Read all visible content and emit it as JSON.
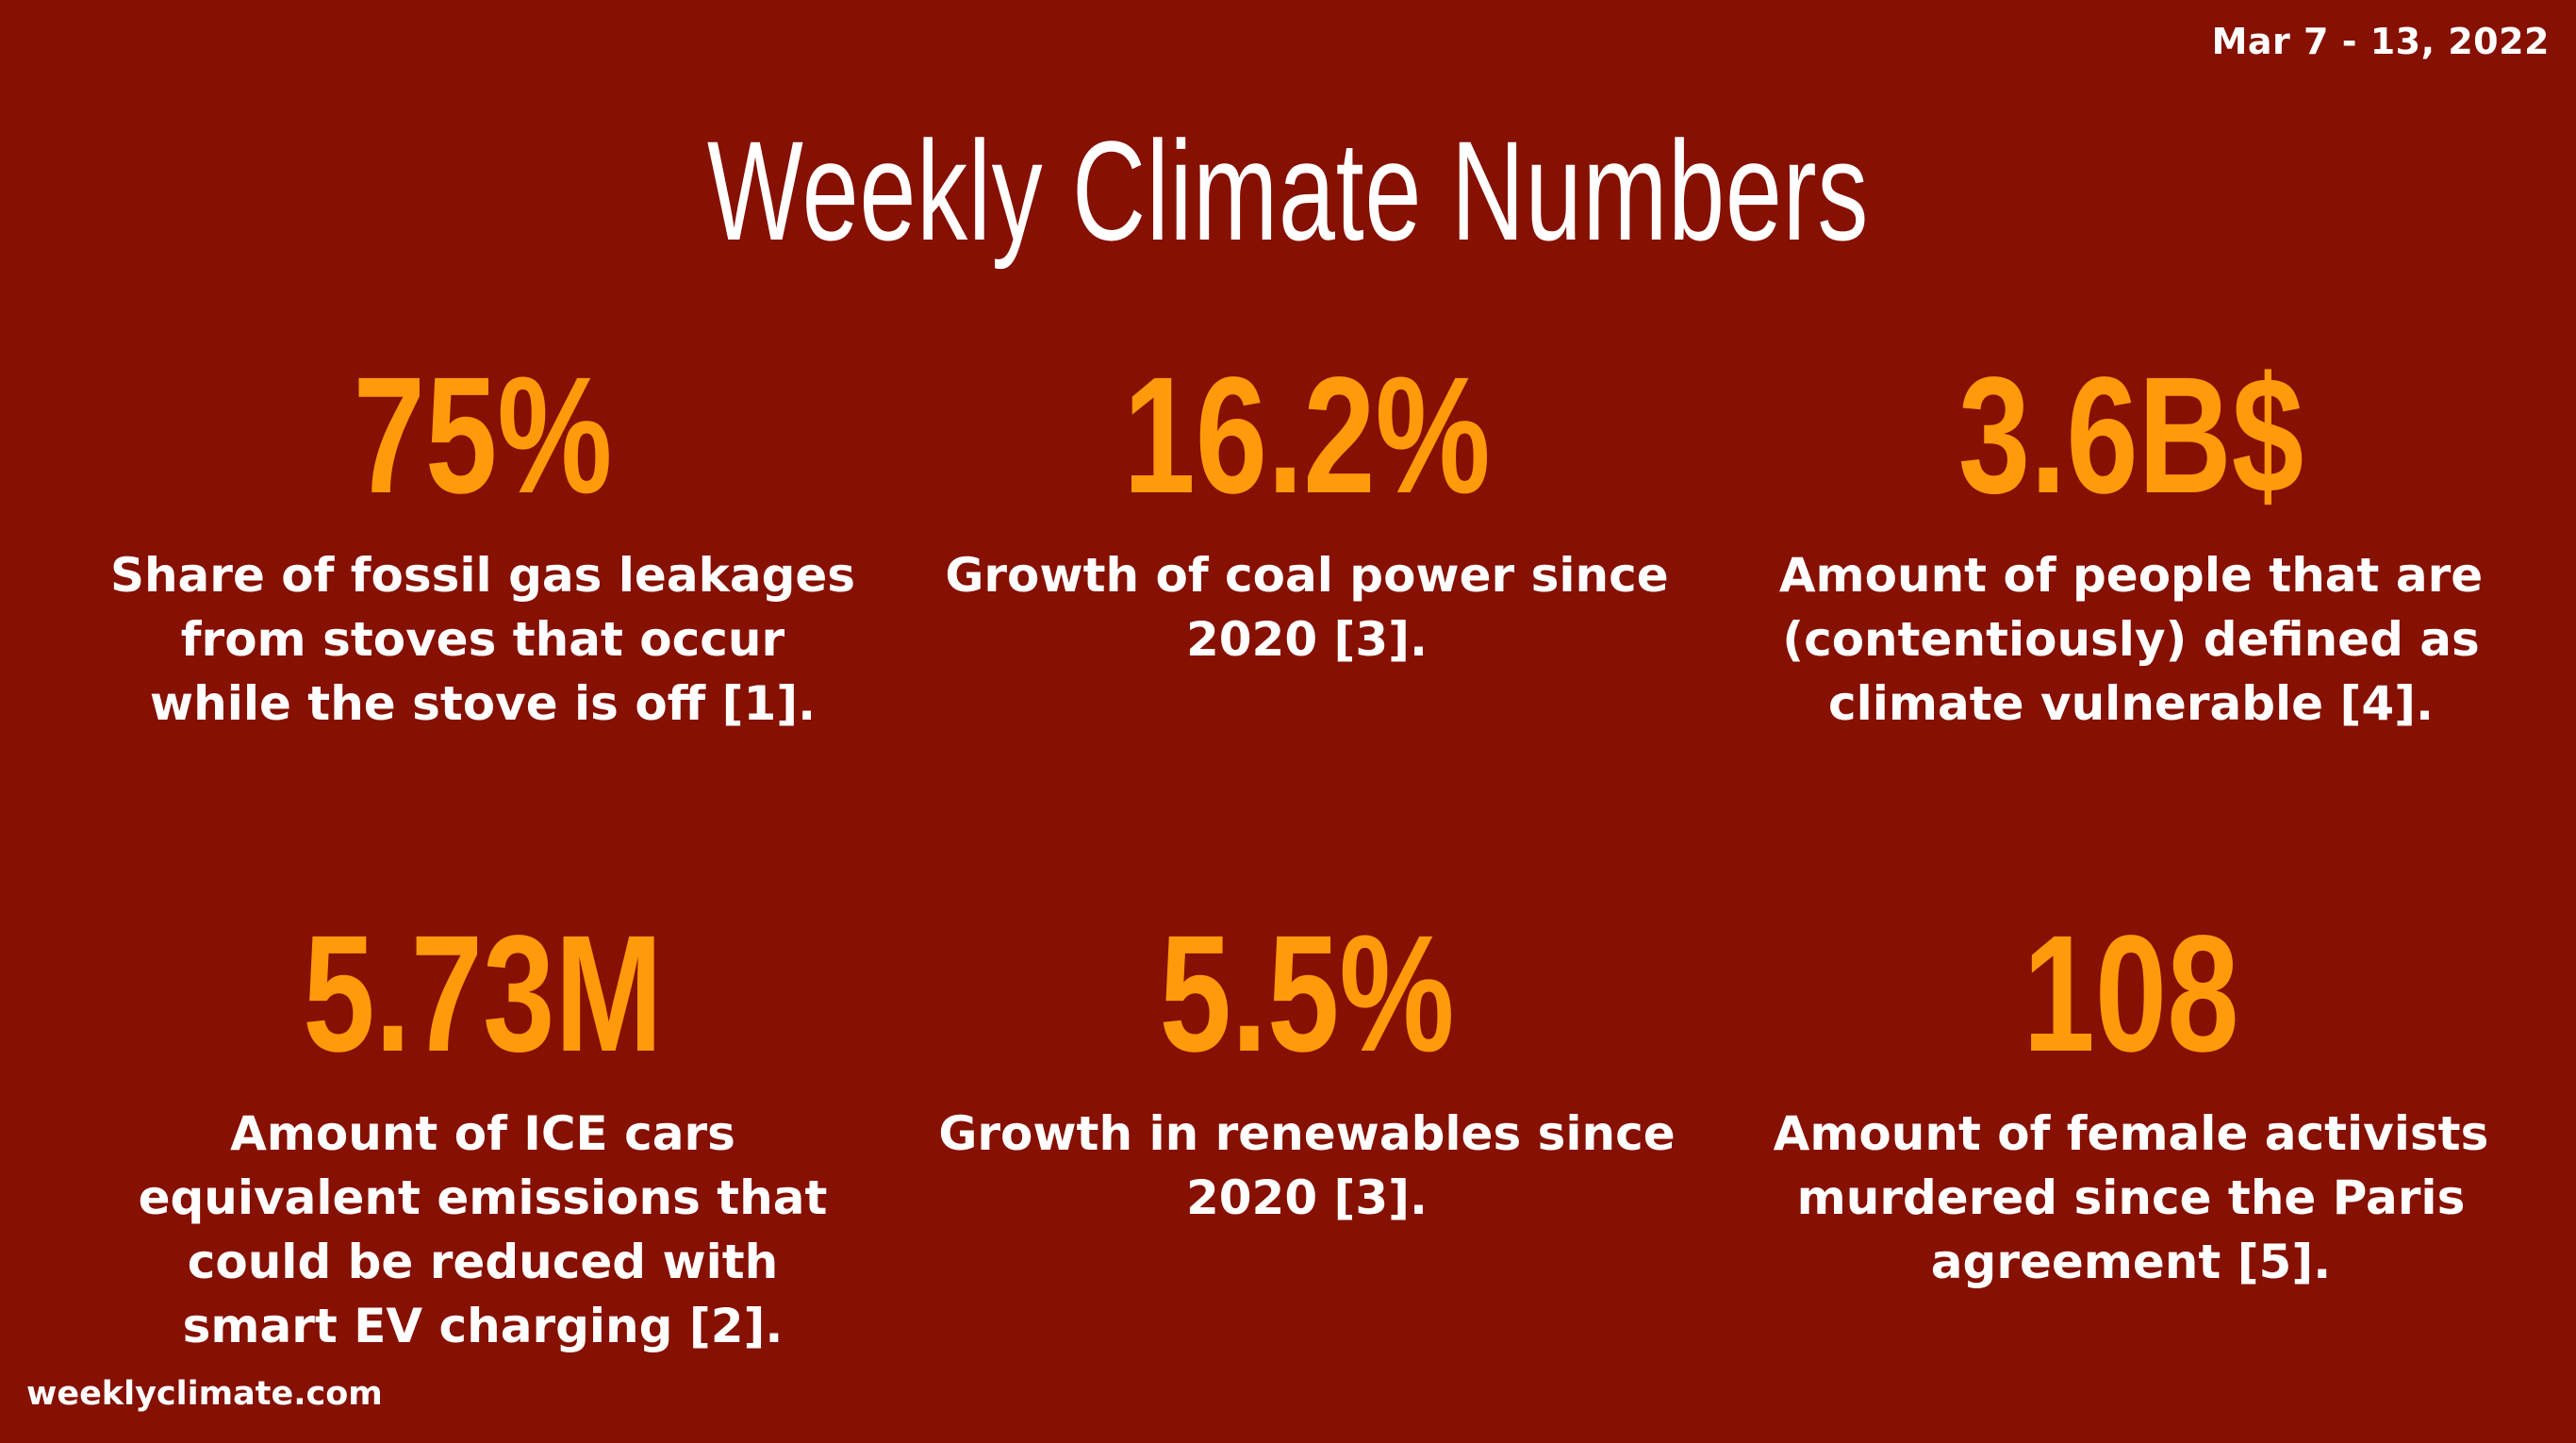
{
  "date_range": "Mar 7 - 13, 2022",
  "title": "Weekly Climate Numbers",
  "stats": [
    {
      "value": "75%",
      "description": "Share of fossil gas leakages from stoves that occur while the stove is off [1]."
    },
    {
      "value": "16.2%",
      "description": "Growth of coal power since 2020 [3]."
    },
    {
      "value": "3.6B$",
      "description": "Amount of people that are (contentiously) defined as climate vulnerable [4]."
    },
    {
      "value": "5.73M",
      "description": "Amount of ICE cars equivalent emissions that could be reduced with smart EV charging [2]."
    },
    {
      "value": "5.5%",
      "description": "Growth in renewables since 2020 [3]."
    },
    {
      "value": "108",
      "description": "Amount of female activists murdered since the Paris agreement [5]."
    }
  ],
  "website": "weeklyclimate.com",
  "colors": {
    "background": "#861001",
    "accent": "#ff9a0a",
    "text": "#ffffff"
  }
}
